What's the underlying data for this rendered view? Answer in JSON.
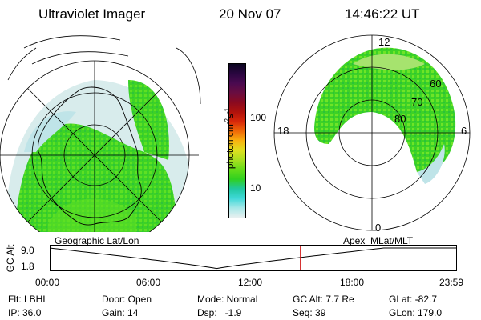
{
  "header": {
    "title": "Ultraviolet Imager",
    "date": "20 Nov 07",
    "time": "14:46:22 UT"
  },
  "colorbar": {
    "unit": "photon cm",
    "unit_exp1": "-2",
    "unit_s": "s",
    "unit_exp2": "-1",
    "ticks": [
      "100",
      "10"
    ],
    "colors": [
      "#0b0620",
      "#2a0640",
      "#4a0a50",
      "#6a0d40",
      "#8a0a20",
      "#b0120c",
      "#d8280a",
      "#f06a08",
      "#f8b210",
      "#dde020",
      "#a8e020",
      "#64dc18",
      "#30d020",
      "#20c8a0",
      "#40d8d8",
      "#a8e8e8",
      "#e8f0f0"
    ]
  },
  "left_map": {
    "caption": "Geographic Lat/Lon"
  },
  "right_map": {
    "caption": "Apex  MLat/MLT",
    "mlt_labels": {
      "top": "12",
      "left": "18",
      "right": "6",
      "bottom": "0"
    },
    "lat_labels": [
      "60",
      "70",
      "80"
    ]
  },
  "timeline": {
    "axis_label": "GC Alt",
    "y_ticks": [
      "9.0",
      "1.8"
    ],
    "x_ticks": [
      "00:00",
      "06:00",
      "12:00",
      "18:00",
      "23:59"
    ],
    "marker_color": "#cc0000",
    "marker_time": "14:46"
  },
  "footer": {
    "flt": "Flt: LBHL",
    "ip": "IP: 36.0",
    "door": "Door: Open",
    "gain": "Gain: 14",
    "mode": "Mode: Normal",
    "dsp": "Dsp:   -1.9",
    "gcalt": "GC Alt: 7.7 Re",
    "seq": "Seq: 39",
    "glat": "GLat: -82.7",
    "glon": "GLon: 179.0"
  }
}
